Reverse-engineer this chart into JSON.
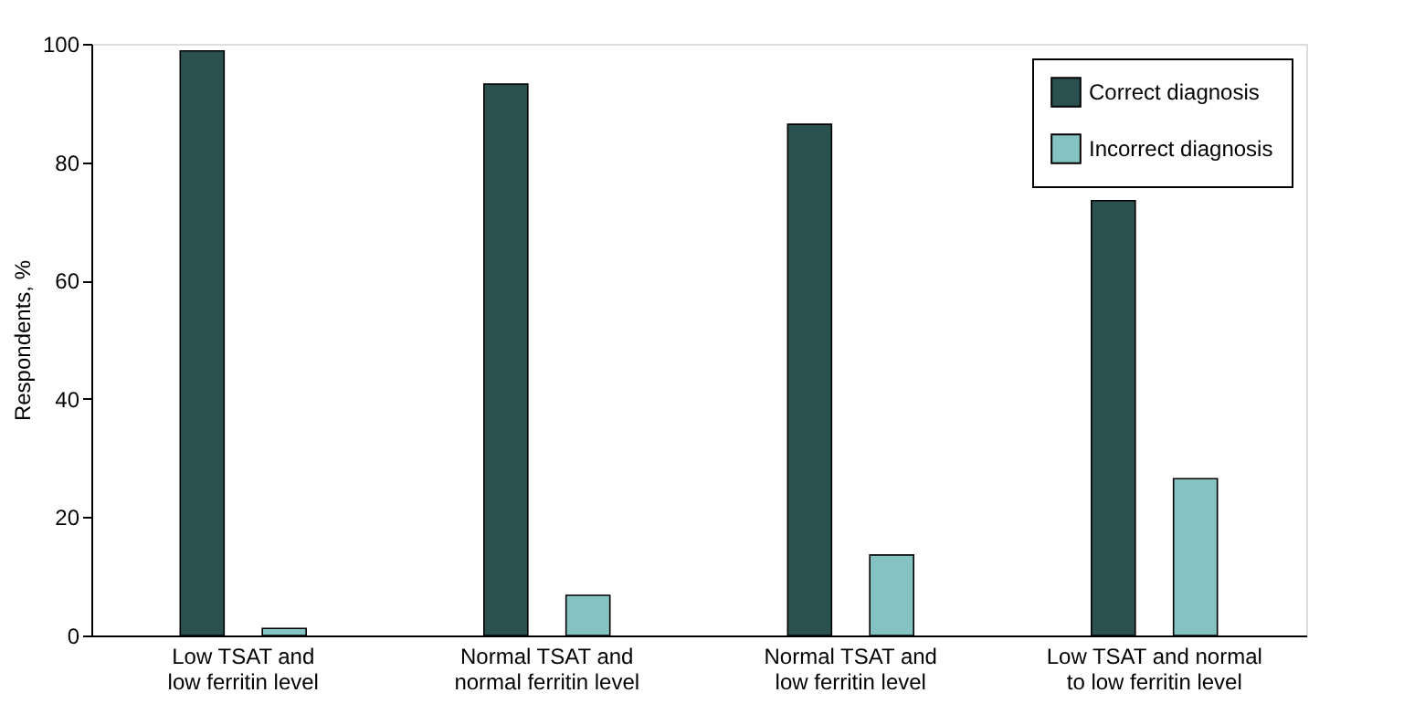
{
  "chart_data": {
    "type": "bar",
    "ylabel": "Respondents, %",
    "categories": [
      "Low TSAT and\nlow ferritin level",
      "Normal TSAT and\nnormal ferritin level",
      "Normal TSAT and\nlow ferritin level",
      "Low TSAT and normal\nto low ferritin level"
    ],
    "series": [
      {
        "name": "Correct diagnosis",
        "color": "#2a5150",
        "values": [
          98.8,
          93.2,
          86.4,
          73.5
        ]
      },
      {
        "name": "Incorrect diagnosis",
        "color": "#84c3c1",
        "values": [
          1.2,
          6.8,
          13.6,
          26.5
        ]
      }
    ],
    "ylim": [
      0,
      100
    ],
    "yticks": [
      0,
      20,
      40,
      60,
      80,
      100
    ],
    "grid": false,
    "legend": "top right"
  }
}
